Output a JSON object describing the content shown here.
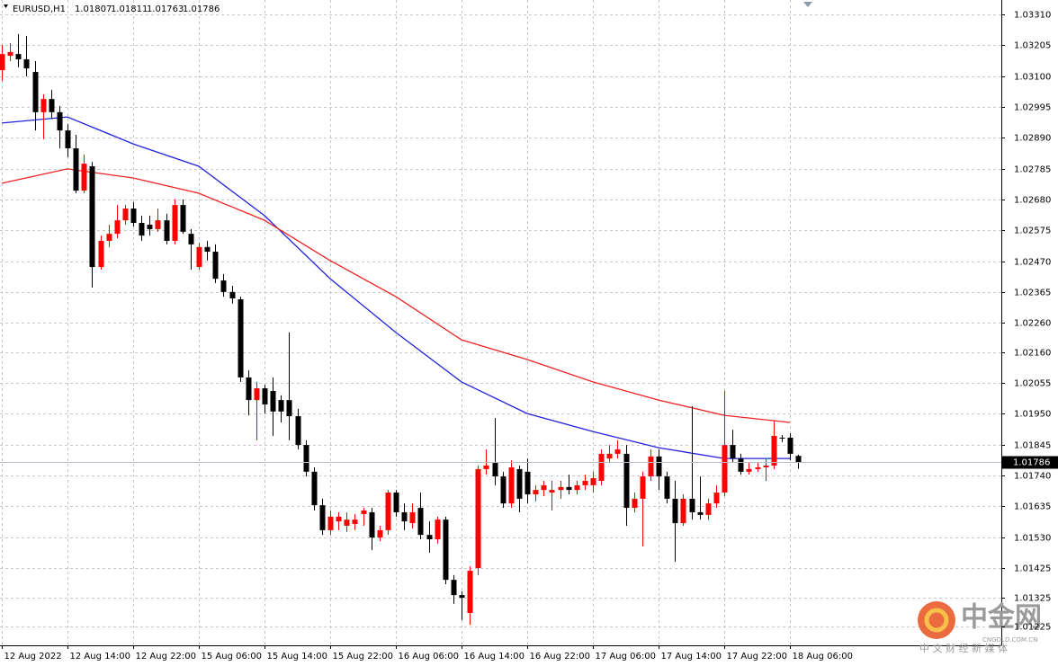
{
  "chart_data": {
    "type": "candlestick",
    "title": "EURUSD,H1",
    "up_color": "#ff0000",
    "down_color": "#000000",
    "grid": true,
    "open": [
      1.0312,
      1.03169,
      1.03175,
      1.03157,
      1.03114,
      1.02977,
      1.03022,
      1.02977,
      1.02915,
      1.02854,
      1.0271,
      1.02793,
      1.0245,
      1.02539,
      1.02563,
      1.02609,
      1.02649,
      1.026,
      1.02594,
      1.02579,
      1.02609,
      1.02539,
      1.02661,
      1.02563,
      1.0245,
      1.02518,
      1.02502,
      1.02404,
      1.02365,
      1.0234,
      1.02074,
      1.01997,
      1.02037,
      1.02028,
      1.01997,
      1.01997,
      1.01942,
      1.01844,
      1.01753,
      1.01639,
      1.01554,
      1.01584,
      1.01569,
      1.01575,
      1.01609,
      1.01615,
      1.01529,
      1.01554,
      1.01682,
      1.01615,
      1.01578,
      1.0163,
      1.01538,
      1.01523,
      1.0159,
      1.01385,
      1.01333,
      1.01272,
      1.01425,
      1.01762,
      1.01783,
      1.01737,
      1.01645,
      1.01762,
      1.01753,
      1.01676,
      1.01691,
      1.01682,
      1.01691,
      1.01701,
      1.01691,
      1.01707,
      1.01707,
      1.01722,
      1.01798,
      1.01814,
      1.01814,
      1.0163,
      1.01661,
      1.01737,
      1.01805,
      1.01737,
      1.01661,
      1.01578,
      1.01661,
      1.01615,
      1.01606,
      1.01645,
      1.01682,
      1.01844,
      1.01798,
      1.01753,
      1.01762,
      1.01768,
      1.01774,
      1.01869,
      1.01869,
      1.01807
    ],
    "high": [
      1.03206,
      1.03212,
      1.03243,
      1.03237,
      1.03151,
      1.03038,
      1.03053,
      1.02998,
      1.02937,
      1.029,
      1.02833,
      1.02808,
      1.02557,
      1.02594,
      1.02661,
      1.02661,
      1.02671,
      1.02625,
      1.02625,
      1.02649,
      1.02631,
      1.0268,
      1.0268,
      1.02579,
      1.02533,
      1.02539,
      1.02527,
      1.02426,
      1.02386,
      1.02349,
      1.02098,
      1.02059,
      1.02049,
      1.02074,
      1.02013,
      1.02227,
      1.01967,
      1.0186,
      1.01768,
      1.01661,
      1.01621,
      1.01615,
      1.01615,
      1.01609,
      1.0163,
      1.0163,
      1.01569,
      1.01691,
      1.01691,
      1.01645,
      1.01645,
      1.01682,
      1.01584,
      1.016,
      1.016,
      1.01401,
      1.01346,
      1.01431,
      1.01774,
      1.01829,
      1.01936,
      1.01753,
      1.01792,
      1.01774,
      1.01798,
      1.01707,
      1.01722,
      1.01722,
      1.01722,
      1.01743,
      1.01722,
      1.01743,
      1.01753,
      1.01829,
      1.01844,
      1.0186,
      1.01844,
      1.01682,
      1.01753,
      1.01829,
      1.01829,
      1.01753,
      1.01722,
      1.01676,
      1.01976,
      1.01737,
      1.01661,
      1.01707,
      1.02028,
      1.01896,
      1.01814,
      1.01783,
      1.01783,
      1.01798,
      1.01927,
      1.01878,
      1.01884,
      1.01811
    ],
    "low": [
      1.03084,
      1.03151,
      1.0313,
      1.03099,
      1.02915,
      1.02885,
      1.02955,
      1.02854,
      1.02824,
      1.02701,
      1.02701,
      1.0238,
      1.02441,
      1.02518,
      1.02548,
      1.02594,
      1.02588,
      1.02539,
      1.02557,
      1.0257,
      1.02527,
      1.02527,
      1.02563,
      1.02441,
      1.02441,
      1.02472,
      1.02395,
      1.02349,
      1.02325,
      1.02059,
      1.01945,
      1.0186,
      1.01951,
      1.01875,
      1.01921,
      1.0186,
      1.01829,
      1.01737,
      1.01621,
      1.01538,
      1.01538,
      1.01554,
      1.01548,
      1.01554,
      1.01569,
      1.01486,
      1.01517,
      1.01538,
      1.016,
      1.01554,
      1.0156,
      1.01523,
      1.01477,
      1.01508,
      1.0137,
      1.01303,
      1.01248,
      1.01232,
      1.01401,
      1.01743,
      1.01707,
      1.0163,
      1.0163,
      1.01615,
      1.01645,
      1.01652,
      1.0167,
      1.01621,
      1.01661,
      1.01676,
      1.01676,
      1.01691,
      1.01682,
      1.01707,
      1.01783,
      1.01798,
      1.01569,
      1.01615,
      1.01499,
      1.01722,
      1.01691,
      1.01645,
      1.01447,
      1.01569,
      1.0159,
      1.0159,
      1.0159,
      1.0163,
      1.0167,
      1.01783,
      1.01743,
      1.01743,
      1.01753,
      1.01722,
      1.01762,
      1.01854,
      1.01792,
      1.01763
    ],
    "close": [
      1.03175,
      1.03182,
      1.03157,
      1.03126,
      1.02977,
      1.03022,
      1.02977,
      1.02915,
      1.02854,
      1.0271,
      1.02802,
      1.0245,
      1.02539,
      1.02563,
      1.02609,
      1.02649,
      1.026,
      1.02557,
      1.02579,
      1.02609,
      1.02539,
      1.02661,
      1.0257,
      1.02527,
      1.02518,
      1.02502,
      1.0241,
      1.02365,
      1.02343,
      1.02074,
      1.01997,
      1.02037,
      1.01982,
      1.01958,
      1.01958,
      1.01942,
      1.01844,
      1.01753,
      1.01639,
      1.01554,
      1.016,
      1.016,
      1.0159,
      1.0159,
      1.01621,
      1.01529,
      1.01554,
      1.01682,
      1.01615,
      1.01584,
      1.01615,
      1.01538,
      1.01523,
      1.0159,
      1.01385,
      1.01333,
      1.01324,
      1.01416,
      1.01762,
      1.01774,
      1.01737,
      1.01645,
      1.01768,
      1.01661,
      1.01676,
      1.01691,
      1.01707,
      1.01691,
      1.01701,
      1.01691,
      1.01707,
      1.01722,
      1.01731,
      1.01814,
      1.01814,
      1.01829,
      1.0163,
      1.01661,
      1.01737,
      1.01805,
      1.01737,
      1.01661,
      1.01578,
      1.01661,
      1.01615,
      1.01606,
      1.01645,
      1.01682,
      1.01844,
      1.01798,
      1.01753,
      1.01762,
      1.01768,
      1.01774,
      1.01875,
      1.01866,
      1.01814,
      1.01786
    ],
    "series": [
      {
        "color": "#2222dd",
        "x": [
          0,
          8,
          16,
          24,
          32,
          40,
          48,
          56,
          64,
          72,
          80,
          88,
          96
        ],
        "values": [
          1.0294,
          1.02961,
          1.02869,
          1.02793,
          1.02625,
          1.0241,
          1.02227,
          1.02059,
          1.01951,
          1.0189,
          1.01835,
          1.01798,
          1.01798
        ]
      },
      {
        "color": "#ee2222",
        "x": [
          0,
          8,
          16,
          24,
          32,
          40,
          48,
          56,
          64,
          72,
          80,
          88,
          96
        ],
        "values": [
          1.02735,
          1.02784,
          1.02753,
          1.02701,
          1.02609,
          1.02472,
          1.02349,
          1.02202,
          1.02135,
          1.02059,
          1.01997,
          1.01945,
          1.01921
        ]
      }
    ],
    "xlim": [
      -0.22,
      121.75
    ],
    "xticks": [
      {
        "value": 0,
        "label": "12 Aug 2022"
      },
      {
        "value": 8,
        "label": "12 Aug 14:00"
      },
      {
        "value": 16,
        "label": "12 Aug 22:00"
      },
      {
        "value": 24,
        "label": "15 Aug 06:00"
      },
      {
        "value": 32,
        "label": "15 Aug 14:00"
      },
      {
        "value": 40,
        "label": "15 Aug 22:00"
      },
      {
        "value": 48,
        "label": "16 Aug 06:00"
      },
      {
        "value": 56,
        "label": "16 Aug 14:00"
      },
      {
        "value": 64,
        "label": "16 Aug 22:00"
      },
      {
        "value": 72,
        "label": "17 Aug 06:00"
      },
      {
        "value": 80,
        "label": "17 Aug 14:00"
      },
      {
        "value": 88,
        "label": "17 Aug 22:00"
      },
      {
        "value": 96,
        "label": "18 Aug 06:00"
      }
    ],
    "ylim": [
      1.01162,
      1.03359
    ],
    "yticks": [
      {
        "value": 1.0331,
        "label": "1.03310"
      },
      {
        "value": 1.03205,
        "label": "1.03205"
      },
      {
        "value": 1.031,
        "label": "1.03100"
      },
      {
        "value": 1.02995,
        "label": "1.02995"
      },
      {
        "value": 1.0289,
        "label": "1.02890"
      },
      {
        "value": 1.02785,
        "label": "1.02785"
      },
      {
        "value": 1.0268,
        "label": "1.02680"
      },
      {
        "value": 1.02575,
        "label": "1.02575"
      },
      {
        "value": 1.0247,
        "label": "1.02470"
      },
      {
        "value": 1.02365,
        "label": "1.02365"
      },
      {
        "value": 1.0226,
        "label": "1.02260"
      },
      {
        "value": 1.0216,
        "label": "1.02160"
      },
      {
        "value": 1.02055,
        "label": "1.02055"
      },
      {
        "value": 1.0195,
        "label": "1.01950"
      },
      {
        "value": 1.01845,
        "label": "1.01845"
      },
      {
        "value": 1.0174,
        "label": "1.01740"
      },
      {
        "value": 1.01635,
        "label": "1.01635"
      },
      {
        "value": 1.0153,
        "label": "1.01530"
      },
      {
        "value": 1.01425,
        "label": "1.01425"
      },
      {
        "value": 1.01325,
        "label": "1.01325"
      },
      {
        "value": 1.01225,
        "label": "1.01225"
      }
    ],
    "watermark": {
      "brand": "中金网",
      "site": "CNGOLD.COM.CN",
      "slogan": "中 文 财 经 新 媒 体"
    }
  }
}
